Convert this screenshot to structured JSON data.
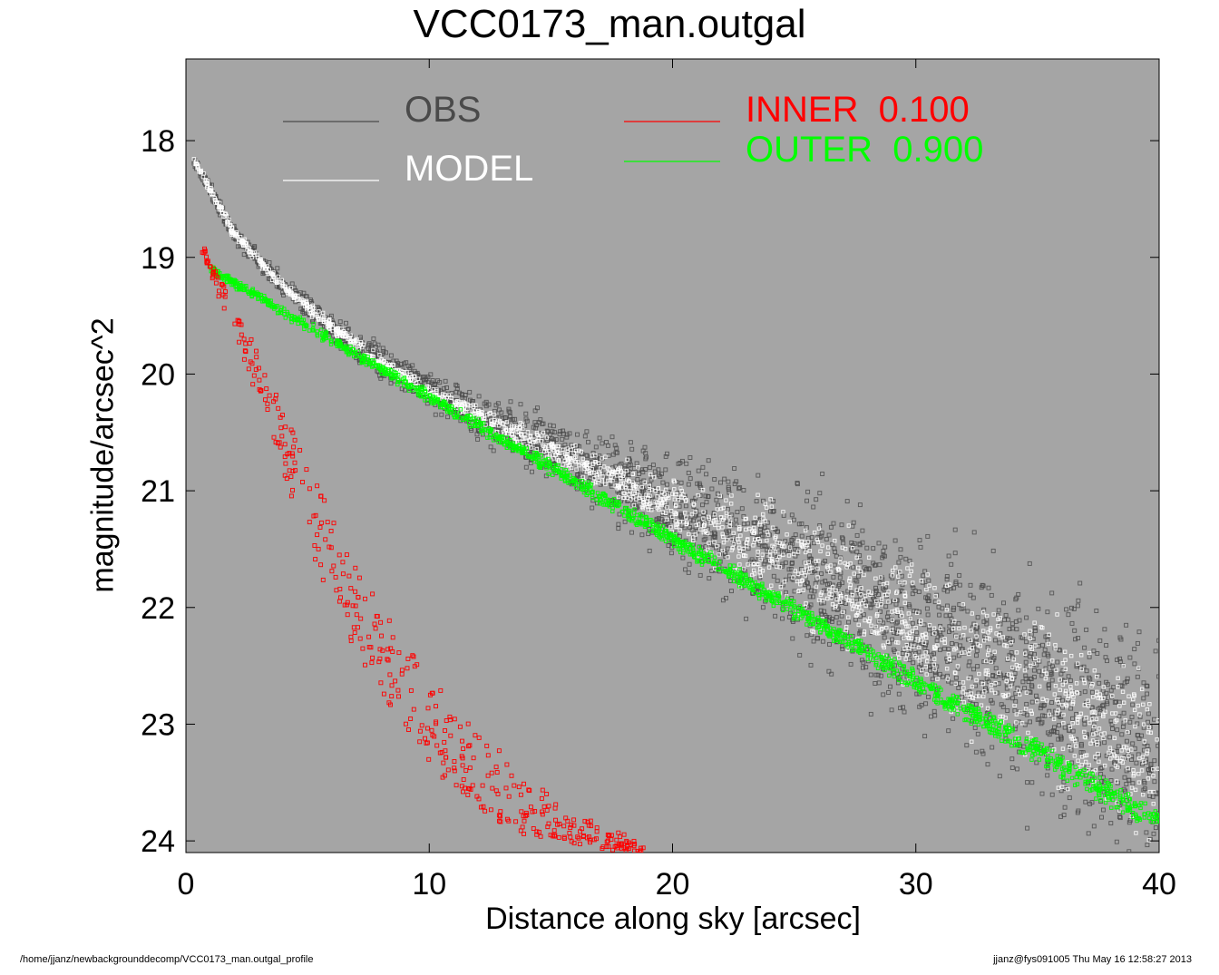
{
  "chart_data": {
    "type": "scatter",
    "title": "VCC0173_man.outgal",
    "xlabel": "Distance along sky [arcsec]",
    "ylabel": "magnitude/arcsec^2",
    "xlim": [
      0,
      40
    ],
    "ylim": [
      24.1,
      17.3
    ],
    "y_inverted": true,
    "xticks": [
      0,
      10,
      20,
      30,
      40
    ],
    "yticks": [
      18,
      19,
      20,
      21,
      22,
      23,
      24
    ],
    "background_color": "#a5a5a5",
    "grid": false,
    "legend_position": "top",
    "legend": [
      {
        "label": "OBS",
        "value": "",
        "color": "#4a4a4a"
      },
      {
        "label": "MODEL",
        "value": "",
        "color": "#ffffff"
      },
      {
        "label": "INNER",
        "value": "0.100",
        "color": "#ff0000"
      },
      {
        "label": "OUTER",
        "value": "0.900",
        "color": "#00ff00"
      }
    ],
    "series": [
      {
        "name": "OBS",
        "color": "#4a4a4a",
        "x": [
          0.3,
          2,
          4,
          6,
          8,
          10,
          12,
          15,
          18,
          20,
          22,
          25,
          28,
          30,
          33,
          36,
          40
        ],
        "y": [
          18.15,
          18.8,
          19.25,
          19.6,
          19.9,
          20.15,
          20.35,
          20.65,
          20.95,
          21.15,
          21.35,
          21.65,
          21.95,
          22.2,
          22.5,
          22.85,
          23.3
        ],
        "scatter_max": [
          0.05,
          0.1,
          0.12,
          0.15,
          0.18,
          0.2,
          0.25,
          0.35,
          0.5,
          0.6,
          0.75,
          0.9,
          1.1,
          1.2,
          1.3,
          1.35,
          1.4
        ]
      },
      {
        "name": "MODEL",
        "color": "#ffffff",
        "x": [
          0.3,
          2,
          4,
          6,
          8,
          10,
          12,
          15,
          18,
          20,
          22,
          25,
          28,
          30,
          33,
          36,
          40
        ],
        "y": [
          18.15,
          18.8,
          19.25,
          19.6,
          19.9,
          20.15,
          20.35,
          20.65,
          20.95,
          21.15,
          21.35,
          21.65,
          21.95,
          22.2,
          22.5,
          22.85,
          23.3
        ],
        "scatter_max": [
          0.04,
          0.06,
          0.07,
          0.08,
          0.08,
          0.08,
          0.1,
          0.15,
          0.25,
          0.35,
          0.5,
          0.6,
          0.7,
          0.8,
          0.85,
          0.9,
          0.95
        ]
      },
      {
        "name": "OUTER",
        "color": "#00ff00",
        "x": [
          1.0,
          40.0
        ],
        "y": [
          19.1,
          23.85
        ],
        "width_x": [
          0.2,
          1.4
        ]
      },
      {
        "name": "INNER",
        "color": "#ff0000",
        "x": [
          0.7,
          2.5,
          4,
          6,
          8,
          10,
          12,
          14,
          16,
          18.8
        ],
        "y": [
          18.95,
          19.75,
          20.55,
          21.55,
          22.35,
          22.95,
          23.4,
          23.75,
          23.95,
          24.1
        ],
        "width_x": [
          0.1,
          0.6,
          1.0,
          1.6,
          2.2,
          2.8,
          3.4,
          3.8,
          4.2,
          0.3
        ]
      }
    ]
  },
  "footer": {
    "path": "/home/jjanz/newbackgrounddecomp/VCC0173_man.outgal_profile",
    "stamp": "jjanz@fys091005  Thu May 16 12:58:27 2013"
  }
}
